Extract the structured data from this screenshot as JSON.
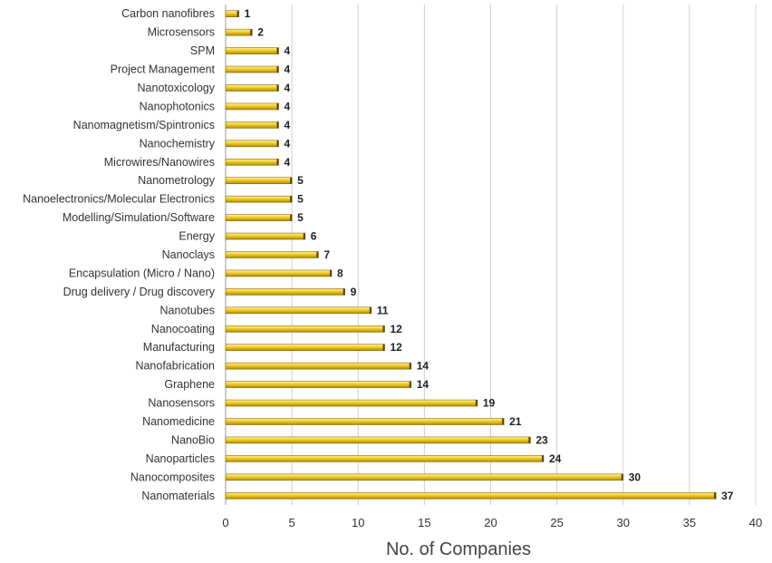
{
  "chart_data": {
    "type": "bar",
    "orientation": "horizontal",
    "categories": [
      "Carbon nanofibres",
      "Microsensors",
      "SPM",
      "Project Management",
      "Nanotoxicology",
      "Nanophotonics",
      "Nanomagnetism/Spintronics",
      "Nanochemistry",
      "Microwires/Nanowires",
      "Nanometrology",
      "Nanoelectronics/Molecular Electronics",
      "Modelling/Simulation/Software",
      "Energy",
      "Nanoclays",
      "Encapsulation (Micro / Nano)",
      "Drug delivery / Drug discovery",
      "Nanotubes",
      "Nanocoating",
      "Manufacturing",
      "Nanofabrication",
      "Graphene",
      "Nanosensors",
      "Nanomedicine",
      "NanoBio",
      "Nanoparticles",
      "Nanocomposites",
      "Nanomaterials"
    ],
    "values": [
      1,
      2,
      4,
      4,
      4,
      4,
      4,
      4,
      4,
      5,
      5,
      5,
      6,
      7,
      8,
      9,
      11,
      12,
      12,
      14,
      14,
      19,
      21,
      23,
      24,
      30,
      37
    ],
    "xlabel": "No. of Companies",
    "xlim": [
      0,
      40
    ],
    "xticks": [
      "0",
      "5",
      "10",
      "15",
      "20",
      "25",
      "30",
      "35",
      "40"
    ],
    "grid": "vertical",
    "data_labels": true,
    "bar_color": "#e8c020",
    "bar_edge_color": "#8a6a00",
    "grid_color": "#d0d0d0"
  }
}
